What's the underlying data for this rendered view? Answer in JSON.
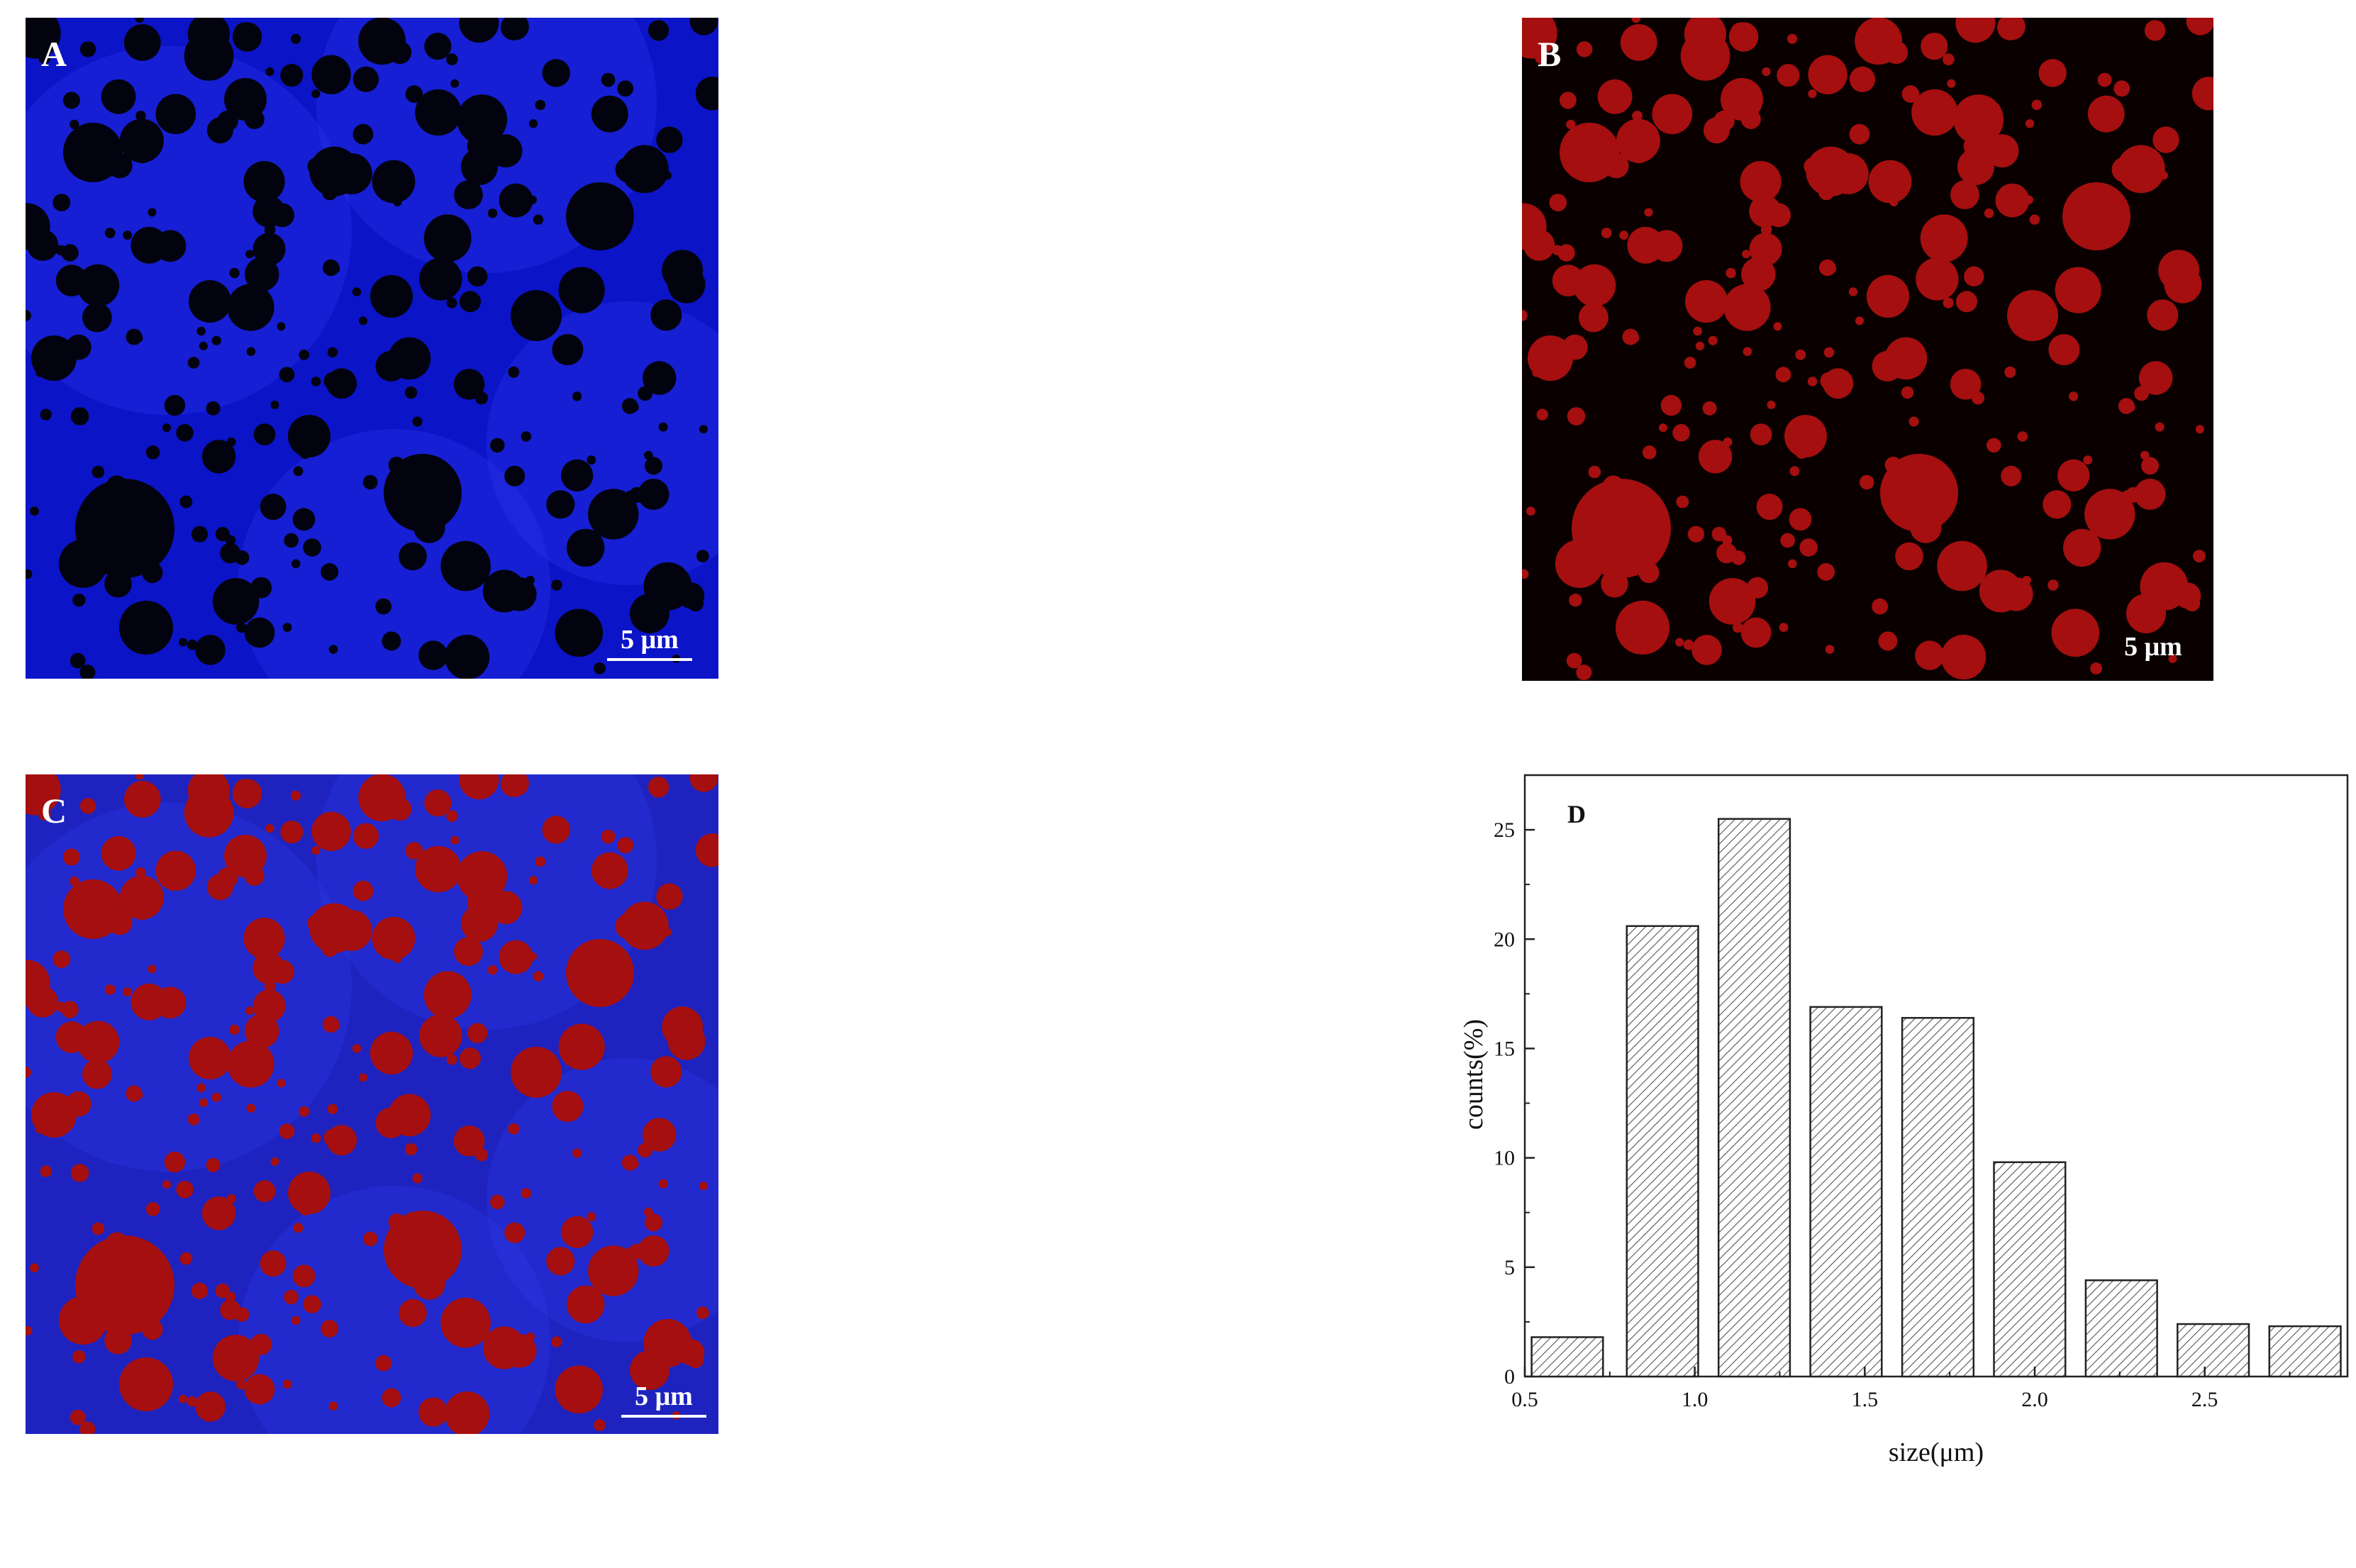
{
  "panels": {
    "a": {
      "label": "A",
      "scale_text": "5 μm"
    },
    "b": {
      "label": "B",
      "scale_text": "5 μm"
    },
    "c": {
      "label": "C",
      "scale_text": "5 μm"
    }
  },
  "colors": {
    "blue_background": "#0c14c8",
    "dark_droplet": "#03030f",
    "red_droplet": "#a50f0f",
    "black_background": "#0a0000",
    "merge_background": "#1e23c0"
  },
  "chart_data": {
    "type": "bar",
    "panel_label": "D",
    "title": "",
    "xlabel": "size(μm)",
    "ylabel": "counts(%)",
    "bins": [
      {
        "from": 0.52,
        "to": 0.73,
        "value": 1.8
      },
      {
        "from": 0.8,
        "to": 1.01,
        "value": 20.6
      },
      {
        "from": 1.07,
        "to": 1.28,
        "value": 25.5
      },
      {
        "from": 1.34,
        "to": 1.55,
        "value": 16.9
      },
      {
        "from": 1.61,
        "to": 1.82,
        "value": 16.4
      },
      {
        "from": 1.88,
        "to": 2.09,
        "value": 9.8
      },
      {
        "from": 2.15,
        "to": 2.36,
        "value": 4.4
      },
      {
        "from": 2.42,
        "to": 2.63,
        "value": 2.4
      },
      {
        "from": 2.69,
        "to": 2.9,
        "value": 2.3
      }
    ],
    "xlim": [
      0.5,
      2.92
    ],
    "ylim": [
      0,
      27.5
    ],
    "xticks": [
      "0.5",
      "1.0",
      "1.5",
      "2.0",
      "2.5"
    ],
    "yticks": [
      "0",
      "5",
      "10",
      "15",
      "20",
      "25"
    ],
    "bar_fill": "hatched",
    "grid": false
  }
}
